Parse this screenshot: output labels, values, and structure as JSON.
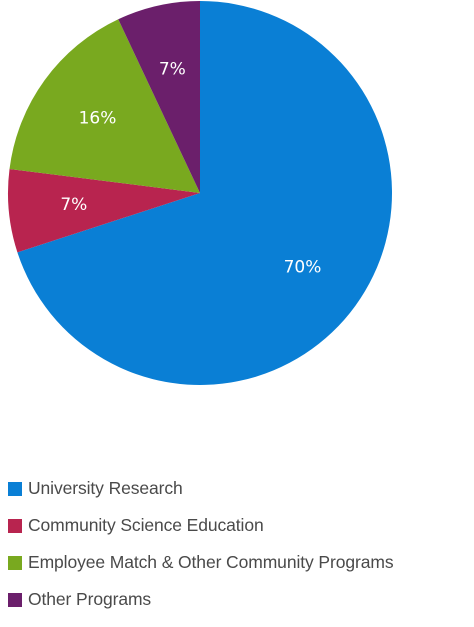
{
  "chart_data": {
    "type": "pie",
    "title": "",
    "start_angle_deg": 0,
    "direction": "clockwise",
    "slices": [
      {
        "label": "University Research",
        "value": 70,
        "display": "70%",
        "color": "#0a7fd5"
      },
      {
        "label": "Community Science Education",
        "value": 7,
        "display": "7%",
        "color": "#b8244f"
      },
      {
        "label": "Employee Match & Other Community Programs",
        "value": 16,
        "display": "16%",
        "color": "#79a91f"
      },
      {
        "label": "Other Programs",
        "value": 7,
        "display": "7%",
        "color": "#6b1f6b"
      }
    ],
    "legend_position": "bottom-left"
  }
}
